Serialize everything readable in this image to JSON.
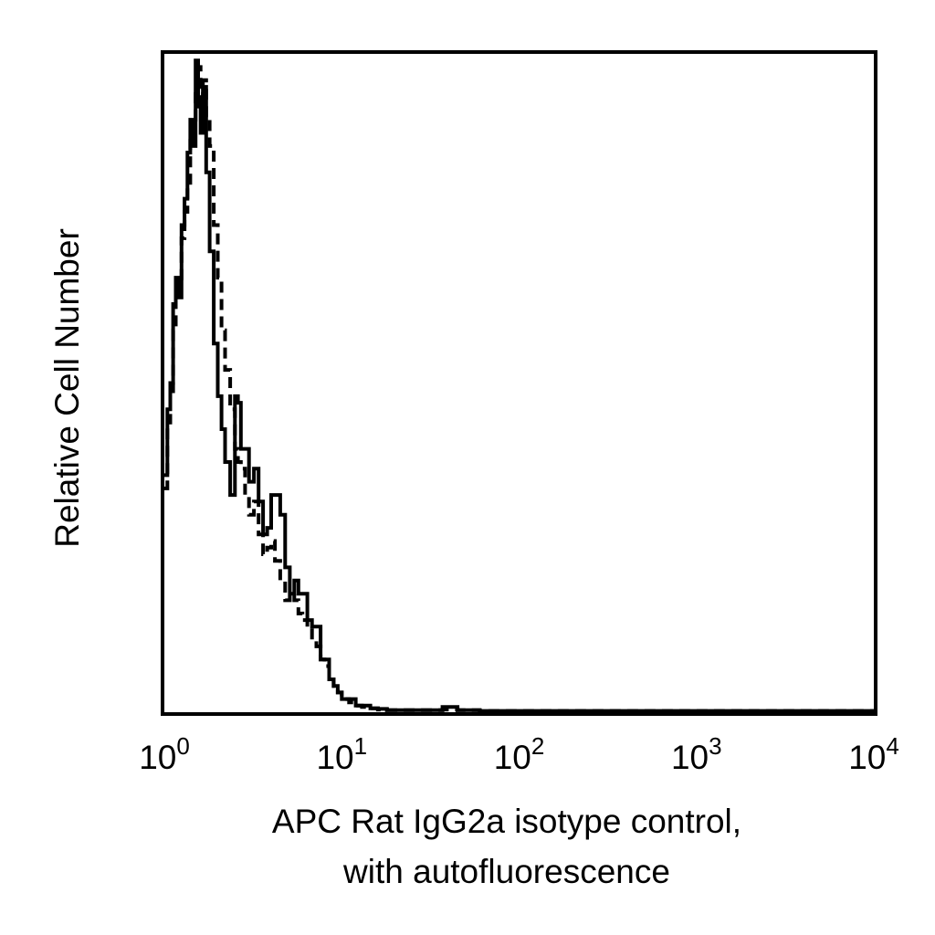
{
  "chart_data": {
    "type": "histogram",
    "xscale": "log",
    "xlim": [
      1,
      10000
    ],
    "ylim": [
      0,
      100
    ],
    "xlabel": "APC Rat IgG2a isotype control,",
    "xlabel_line2": "with autofluorescence",
    "ylabel": "Relative Cell Number",
    "x_ticks": [
      {
        "base": "10",
        "exp": "0",
        "value": 1
      },
      {
        "base": "10",
        "exp": "1",
        "value": 10
      },
      {
        "base": "10",
        "exp": "2",
        "value": 100
      },
      {
        "base": "10",
        "exp": "3",
        "value": 1000
      },
      {
        "base": "10",
        "exp": "4",
        "value": 10000
      }
    ],
    "grid": false,
    "legend": "none",
    "series": [
      {
        "style": "solid",
        "x": [
          1.0,
          1.04,
          1.08,
          1.12,
          1.16,
          1.2,
          1.25,
          1.3,
          1.35,
          1.4,
          1.45,
          1.5,
          1.55,
          1.6,
          1.65,
          1.72,
          1.8,
          1.9,
          2.0,
          2.1,
          2.2,
          2.35,
          2.5,
          2.6,
          2.7,
          2.85,
          3.0,
          3.2,
          3.4,
          3.6,
          3.8,
          4.0,
          4.2,
          4.5,
          4.8,
          5.1,
          5.4,
          5.7,
          6.0,
          6.4,
          6.8,
          7.2,
          7.6,
          8.0,
          8.5,
          9.0,
          9.5,
          10.0,
          11.0,
          12.0,
          13.0,
          14.5,
          16.0,
          18.0,
          20.0,
          25.0,
          30.0,
          37.0,
          40.0,
          45.0,
          60.0,
          100.0,
          1000.0,
          10000.0
        ],
        "y": [
          36,
          46,
          50,
          62,
          66,
          63,
          74,
          78,
          85,
          90,
          86,
          99,
          92,
          88,
          95,
          82,
          70,
          56,
          48,
          43,
          38,
          33,
          48,
          47,
          40,
          40,
          35,
          37,
          32,
          27,
          28,
          33,
          33,
          30,
          22,
          18,
          20,
          18,
          18,
          14,
          13,
          13,
          8,
          8,
          5,
          4,
          3,
          2,
          2,
          1,
          1,
          0.6,
          0.5,
          0.3,
          0.3,
          0.3,
          0.3,
          0.8,
          0.8,
          0.3,
          0.2,
          0.2,
          0.2,
          0.2
        ]
      },
      {
        "style": "dashed",
        "x": [
          1.0,
          1.04,
          1.08,
          1.12,
          1.16,
          1.2,
          1.25,
          1.3,
          1.35,
          1.4,
          1.45,
          1.5,
          1.55,
          1.6,
          1.65,
          1.72,
          1.8,
          1.9,
          2.0,
          2.1,
          2.2,
          2.35,
          2.5,
          2.6,
          2.7,
          2.85,
          3.0,
          3.2,
          3.4,
          3.6,
          3.8,
          4.0,
          4.2,
          4.5,
          4.8,
          5.1,
          5.4,
          5.7,
          6.0,
          6.4,
          6.8,
          7.2,
          7.6,
          8.0,
          8.5,
          9.0,
          9.5,
          10.0,
          11.0,
          12.0,
          13.0,
          14.5,
          16.0,
          18.0,
          20.0,
          25.0,
          30.0,
          37.0,
          40.0,
          45.0,
          60.0,
          100.0,
          1000.0,
          10000.0
        ],
        "y": [
          34,
          44,
          48,
          58,
          63,
          65,
          72,
          76,
          80,
          88,
          90,
          95,
          98,
          92,
          96,
          90,
          86,
          74,
          66,
          58,
          52,
          46,
          40,
          38,
          37,
          33,
          30,
          32,
          27,
          24,
          25,
          26,
          23,
          20,
          17,
          18,
          17,
          15,
          14,
          13,
          11,
          10,
          8,
          7,
          5,
          4,
          3,
          2,
          1.5,
          1,
          0.8,
          0.6,
          0.4,
          0.3,
          0.3,
          0.3,
          0.3,
          0.4,
          0.4,
          0.3,
          0.2,
          0.2,
          0.2,
          0.2
        ]
      }
    ]
  },
  "colors": {
    "line": "#000000",
    "background": "#ffffff"
  }
}
